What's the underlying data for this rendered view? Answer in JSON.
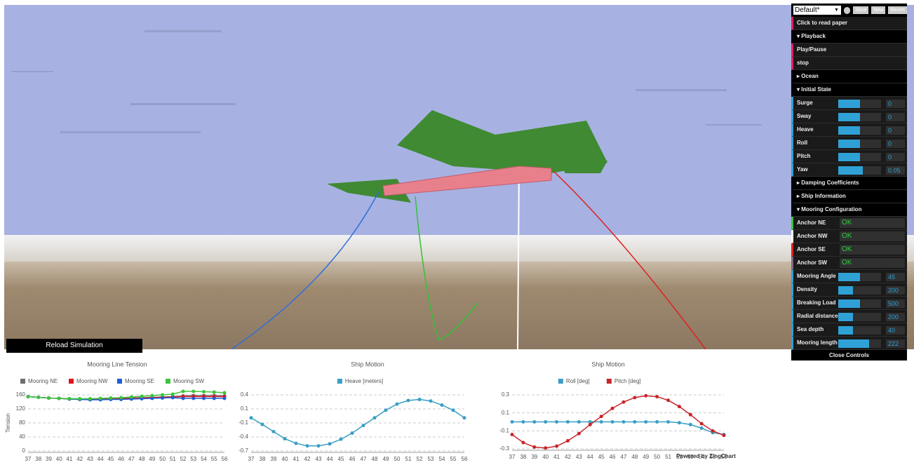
{
  "ui": {
    "reload_button": "Reload Simulation",
    "powered_by": "Powered by ZingChart",
    "controls": {
      "preset": "Default*",
      "buttons": [
        "Save",
        "New",
        "Revert"
      ],
      "read_paper": "Click to read paper",
      "playback": {
        "title": "Playback",
        "items": [
          "Play/Pause",
          "stop"
        ]
      },
      "ocean": "Ocean",
      "initial_state": {
        "title": "Initial State",
        "params": [
          {
            "label": "Surge",
            "value": 0
          },
          {
            "label": "Sway",
            "value": 0
          },
          {
            "label": "Heave",
            "value": 0
          },
          {
            "label": "Roll",
            "value": 0
          },
          {
            "label": "Pitch",
            "value": 0
          },
          {
            "label": "Yaw",
            "value": 0.05
          }
        ]
      },
      "damping": "Damping Coefficients",
      "ship_info": "Ship Information",
      "mooring": {
        "title": "Mooring Configuration",
        "anchors": [
          {
            "label": "Anchor NE",
            "status": "OK"
          },
          {
            "label": "Anchor NW",
            "status": "OK"
          },
          {
            "label": "Anchor SE",
            "status": "OK"
          },
          {
            "label": "Anchor SW",
            "status": "OK"
          }
        ],
        "params": [
          {
            "label": "Mooring Angle",
            "value": 45
          },
          {
            "label": "Density",
            "value": 200
          },
          {
            "label": "Breaking Load",
            "value": 500
          },
          {
            "label": "Radial distance",
            "value": 200
          },
          {
            "label": "Sea depth",
            "value": 40
          },
          {
            "label": "Mooring length",
            "value": 222
          }
        ]
      },
      "close": "Close Controls"
    }
  },
  "chart_data": [
    {
      "type": "line",
      "title": "Mooring Line Tension",
      "ylabel": "Tension",
      "x": [
        37,
        38,
        39,
        40,
        41,
        42,
        43,
        44,
        45,
        46,
        47,
        48,
        49,
        50,
        51,
        52,
        53,
        54,
        55,
        56
      ],
      "xlim": [
        37,
        56
      ],
      "ylim": [
        0,
        160
      ],
      "yticks": [
        0,
        40,
        80,
        120,
        160
      ],
      "grid": true,
      "series": [
        {
          "name": "Mooring NE",
          "color": "#6e6e6e",
          "values": [
            155,
            153,
            151,
            150,
            149,
            148,
            148,
            148,
            149,
            150,
            151,
            152,
            153,
            154,
            155,
            157,
            158,
            158,
            158,
            157
          ]
        },
        {
          "name": "Mooring NW",
          "color": "#e3121b",
          "values": [
            155,
            153,
            151,
            150,
            148,
            147,
            147,
            147,
            148,
            149,
            150,
            151,
            152,
            153,
            154,
            155,
            155,
            155,
            155,
            155
          ]
        },
        {
          "name": "Mooring SE",
          "color": "#1f5fd6",
          "values": [
            155,
            153,
            151,
            150,
            148,
            147,
            146,
            146,
            147,
            147,
            148,
            149,
            150,
            151,
            152,
            150,
            150,
            150,
            150,
            150
          ]
        },
        {
          "name": "Mooring SW",
          "color": "#3cc43c",
          "values": [
            155,
            153,
            151,
            150,
            149,
            149,
            149,
            150,
            151,
            152,
            154,
            156,
            158,
            160,
            162,
            170,
            170,
            169,
            168,
            166
          ]
        }
      ]
    },
    {
      "type": "line",
      "title": "Ship Motion",
      "x": [
        37,
        38,
        39,
        40,
        41,
        42,
        43,
        44,
        45,
        46,
        47,
        48,
        49,
        50,
        51,
        52,
        53,
        54,
        55,
        56
      ],
      "xlim": [
        37,
        56
      ],
      "ylim": [
        -0.7,
        0.4
      ],
      "yticks": [
        -0.7,
        {
          "value": -0.425,
          "label": "-0.4"
        },
        {
          "value": -0.15,
          "label": "-0.1"
        },
        {
          "value": 0.125,
          "label": "0.1"
        },
        0.4
      ],
      "grid": true,
      "series": [
        {
          "name": "Heave [meters]",
          "color": "#3a9fc4",
          "values": [
            -0.05,
            -0.18,
            -0.32,
            -0.46,
            -0.55,
            -0.6,
            -0.6,
            -0.56,
            -0.47,
            -0.35,
            -0.2,
            -0.05,
            0.1,
            0.22,
            0.29,
            0.31,
            0.28,
            0.2,
            0.1,
            -0.05
          ]
        }
      ]
    },
    {
      "type": "line",
      "title": "Ship Motion",
      "x": [
        37,
        38,
        39,
        40,
        41,
        42,
        43,
        44,
        45,
        46,
        47,
        48,
        49,
        50,
        51,
        52,
        53,
        54,
        55,
        56
      ],
      "xlim": [
        37,
        56
      ],
      "ylim": [
        -0.3,
        0.3
      ],
      "yticks": [
        -0.3,
        -0.1,
        0.1,
        0.3
      ],
      "grid": true,
      "series": [
        {
          "name": "Roll [deg]",
          "color": "#3a9fc4",
          "values": [
            0,
            0,
            0,
            0,
            0,
            0,
            0,
            0,
            0,
            0,
            0,
            0,
            0,
            0,
            0,
            -0.01,
            -0.03,
            -0.07,
            -0.12,
            -0.14
          ]
        },
        {
          "name": "Pitch [deg]",
          "color": "#c8252a",
          "values": [
            -0.14,
            -0.23,
            -0.28,
            -0.29,
            -0.27,
            -0.21,
            -0.13,
            -0.03,
            0.06,
            0.15,
            0.22,
            0.27,
            0.29,
            0.28,
            0.24,
            0.17,
            0.08,
            -0.02,
            -0.1,
            -0.15
          ]
        }
      ]
    }
  ]
}
